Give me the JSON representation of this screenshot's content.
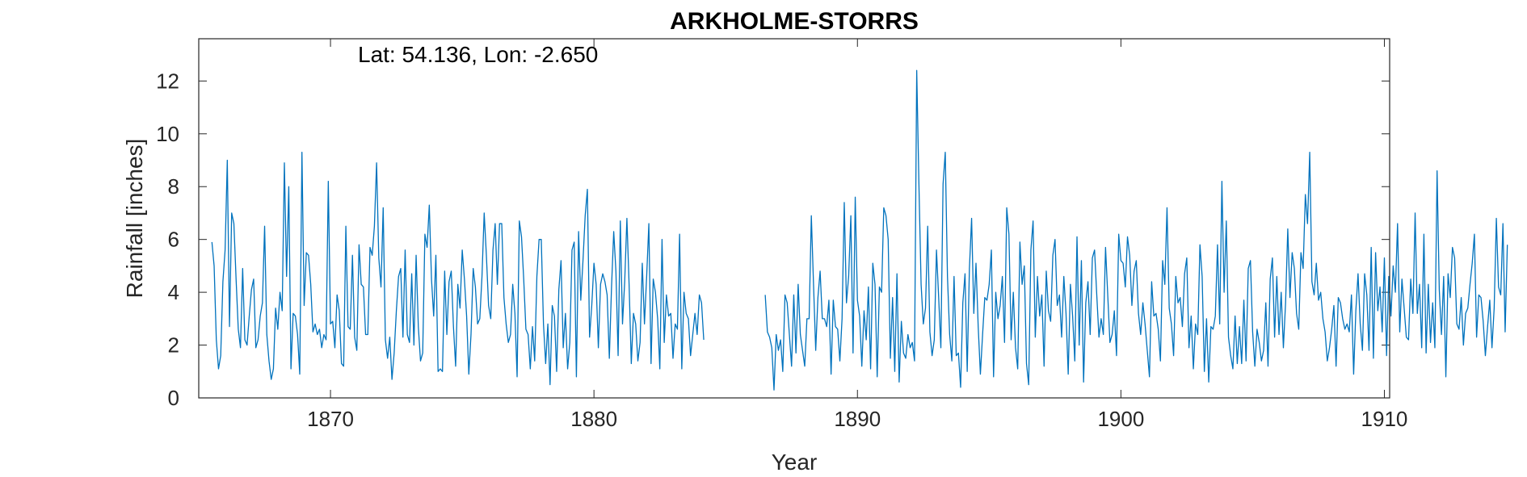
{
  "chart_data": {
    "type": "line",
    "title": "ARKHOLME-STORRS",
    "xlabel": "Year",
    "ylabel": "Rainfall [inches]",
    "annotation": "Lat: 54.136, Lon: -2.650",
    "xlim": [
      1865.0,
      1910.2
    ],
    "ylim": [
      0,
      13.6
    ],
    "xticks": [
      1870,
      1880,
      1890,
      1900,
      1910
    ],
    "yticks": [
      0,
      2,
      4,
      6,
      8,
      10,
      12
    ],
    "xtick_labels": [
      "1870",
      "1880",
      "1890",
      "1900",
      "1910"
    ],
    "ytick_labels": [
      "0",
      "2",
      "4",
      "6",
      "8",
      "10",
      "12"
    ],
    "grid": false,
    "box": true,
    "line_color": "#0072BD",
    "series": [
      {
        "x_start": 1865.5,
        "x_step": 0.0833333,
        "values": [
          5.9,
          5.0,
          2.2,
          1.1,
          1.6,
          4.4,
          5.6,
          9.0,
          2.7,
          7.0,
          6.6,
          4.5,
          2.6,
          1.9,
          4.9,
          2.2,
          2.0,
          3.1,
          4.1,
          4.5,
          1.9,
          2.2,
          3.1,
          3.6,
          6.5,
          2.4,
          1.4,
          0.7,
          1.1,
          3.4,
          2.6,
          4.0,
          3.3,
          8.9,
          4.6,
          8.0,
          1.1,
          3.2,
          3.1,
          2.4,
          0.9,
          9.3,
          3.5,
          5.5,
          5.4,
          4.3,
          2.5,
          2.8,
          2.4,
          2.6,
          1.9,
          2.4,
          2.2,
          8.2,
          2.8,
          2.9,
          1.9,
          3.9,
          3.3,
          1.3,
          1.2,
          6.5,
          2.7,
          2.6,
          5.4,
          2.3,
          1.8,
          5.8,
          4.3,
          4.2,
          2.4,
          2.4,
          5.7,
          5.4,
          6.5,
          8.9,
          5.3,
          4.2,
          7.2,
          2.2,
          1.5,
          2.3,
          0.7,
          1.7,
          3.3,
          4.6,
          4.9,
          2.3,
          5.6,
          2.4,
          2.1,
          4.7,
          2.0,
          5.4,
          2.7,
          1.4,
          1.7,
          6.2,
          5.7,
          7.3,
          4.5,
          3.1,
          5.4,
          1.0,
          1.1,
          1.0,
          4.8,
          2.4,
          4.4,
          4.8,
          2.7,
          1.2,
          4.3,
          3.4,
          5.6,
          4.5,
          3.1,
          0.9,
          2.4,
          4.9,
          4.2,
          2.8,
          3.0,
          4.6,
          7.0,
          5.4,
          3.5,
          3.0,
          5.6,
          6.6,
          4.3,
          6.6,
          6.6,
          3.8,
          2.8,
          2.1,
          2.4,
          4.3,
          3.2,
          0.8,
          6.7,
          6.1,
          4.5,
          2.6,
          2.4,
          1.1,
          2.7,
          1.4,
          4.6,
          6.0,
          6.0,
          2.8,
          1.3,
          2.8,
          0.5,
          3.5,
          3.1,
          1.0,
          4.1,
          5.2,
          1.9,
          3.2,
          1.1,
          2.1,
          5.6,
          5.9,
          0.8,
          6.3,
          3.7,
          5.2,
          6.9,
          7.9,
          2.3,
          3.5,
          5.1,
          4.3,
          1.9,
          4.3,
          4.7,
          4.4,
          3.9,
          1.5,
          4.2,
          6.3,
          4.8,
          1.6,
          6.7,
          2.8,
          4.4,
          6.8,
          4.3,
          1.3,
          3.2,
          2.8,
          1.4,
          2.1,
          5.1,
          2.8,
          4.6,
          6.6,
          1.3,
          4.5,
          4.0,
          3.0,
          1.1,
          6.0,
          2.1,
          3.9,
          3.1,
          3.2,
          1.5,
          2.8,
          2.6,
          6.2,
          1.1,
          4.0,
          3.2,
          3.0,
          1.6,
          2.4,
          3.2,
          2.4,
          3.9,
          3.6,
          2.2
        ]
      },
      {
        "x_start": 1886.5,
        "x_step": 0.0833333,
        "values": [
          3.9,
          2.5,
          2.3,
          1.9,
          0.3,
          2.4,
          1.8,
          2.2,
          1.0,
          3.9,
          3.6,
          2.4,
          1.2,
          3.9,
          1.7,
          4.3,
          2.4,
          1.8,
          1.2,
          3.0,
          3.0,
          6.9,
          4.3,
          1.8,
          3.8,
          4.8,
          3.0,
          3.0,
          2.7,
          3.7,
          0.9,
          3.7,
          2.7,
          2.6,
          1.4,
          3.0,
          7.4,
          3.6,
          4.6,
          6.9,
          1.7,
          7.6,
          3.7,
          3.1,
          1.2,
          3.3,
          2.2,
          4.2,
          1.1,
          5.1,
          4.3,
          0.8,
          4.2,
          4.0,
          7.2,
          6.9,
          6.0,
          1.5,
          3.8,
          1.0,
          4.7,
          0.6,
          2.9,
          1.7,
          1.5,
          2.4,
          1.9,
          2.1,
          1.4,
          12.4,
          8.1,
          4.3,
          2.8,
          3.4,
          6.5,
          2.5,
          1.6,
          2.2,
          5.6,
          3.8,
          1.9,
          8.1,
          9.3,
          4.6,
          2.4,
          1.4,
          4.6,
          1.6,
          1.7,
          0.4,
          3.6,
          4.7,
          1.0,
          4.9,
          6.8,
          3.2,
          5.1,
          2.7,
          0.9,
          2.4,
          3.8,
          3.7,
          4.3,
          5.6,
          0.8,
          4.0,
          3.0,
          3.5,
          4.6,
          2.1,
          7.2,
          6.2,
          2.2,
          4.0,
          1.9,
          1.1,
          5.9,
          4.3,
          5.0,
          1.3,
          0.5,
          5.6,
          6.7,
          2.3,
          4.6,
          3.1,
          3.9,
          1.2,
          4.8,
          3.3,
          2.9,
          5.4,
          6.0,
          3.5,
          3.9,
          2.3,
          4.6,
          3.2,
          0.9,
          4.3,
          3.1,
          1.4,
          6.1,
          2.0,
          5.2,
          0.6,
          3.6,
          4.4,
          2.4,
          5.3,
          5.6,
          3.9,
          2.3,
          3.0,
          2.4,
          5.7,
          3.9,
          2.1,
          2.4,
          3.3,
          1.6,
          6.2,
          5.2,
          5.1,
          4.2,
          6.1,
          5.4,
          3.5,
          4.8,
          5.2,
          3.2,
          2.4,
          3.6,
          2.8,
          1.8,
          0.8,
          4.4,
          3.1,
          3.2,
          2.6,
          1.4,
          5.2,
          4.3,
          7.2,
          3.4,
          2.8,
          1.6,
          4.6,
          3.6,
          3.8,
          2.7,
          4.7,
          5.3,
          1.9,
          3.1,
          1.1,
          2.8,
          2.4,
          5.8,
          4.6,
          1.0,
          3.0,
          0.6,
          2.7,
          2.6,
          3.1,
          5.8,
          2.8,
          8.2,
          4.0,
          6.7,
          2.3,
          1.6,
          1.1,
          3.1,
          1.3,
          2.7,
          1.3,
          3.7,
          1.4,
          4.9,
          5.2,
          2.5,
          1.2,
          2.6,
          2.1,
          1.4,
          1.8,
          3.6,
          1.2,
          4.5,
          5.3,
          2.3,
          4.6,
          2.4,
          4.0,
          1.9,
          3.6,
          6.4,
          3.8,
          5.5,
          4.9,
          3.2,
          2.6,
          5.5,
          4.9,
          7.7,
          6.6,
          9.3,
          4.4,
          3.9,
          5.1,
          3.7,
          4.0,
          3.0,
          2.5,
          1.4,
          1.9,
          2.6,
          3.5,
          1.2,
          3.8,
          3.6,
          3.0,
          2.6,
          2.8,
          2.5,
          3.9,
          0.9,
          3.3,
          4.7,
          2.8,
          1.8,
          4.7,
          3.9,
          1.8,
          5.7,
          1.5,
          5.5,
          3.3,
          4.2,
          2.5,
          5.3,
          1.6,
          4.6,
          3.1,
          5.0,
          4.0,
          6.6,
          2.5,
          4.5,
          3.4,
          2.3,
          2.2,
          4.5,
          3.2,
          7.0,
          3.2,
          4.3,
          1.9,
          6.2,
          1.7,
          4.3,
          2.1,
          3.6,
          1.9,
          8.6,
          4.1,
          2.4,
          4.6,
          0.8,
          4.7,
          3.8,
          5.7,
          5.3,
          2.8,
          2.6,
          3.8,
          2.0,
          3.2,
          3.4,
          4.3,
          5.1,
          6.2,
          2.3,
          3.9,
          3.8,
          2.9,
          1.6,
          2.7,
          3.7,
          1.9,
          3.4,
          6.8,
          4.2,
          3.9,
          6.6,
          2.5,
          5.8
        ]
      }
    ]
  }
}
